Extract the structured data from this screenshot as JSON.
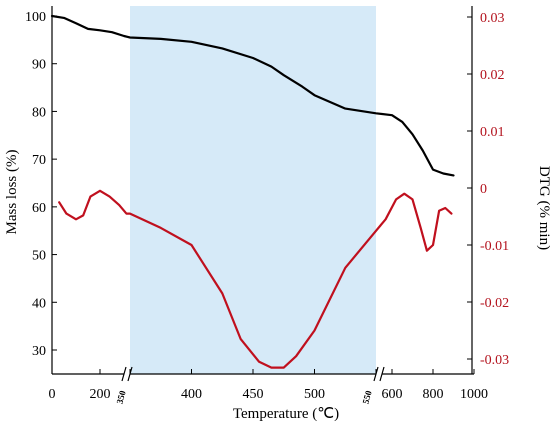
{
  "chart_data": {
    "type": "line",
    "xlabel": "Temperature (℃)",
    "ylabel_left": "Mass loss (%)",
    "ylabel_right": "DTG (% min)",
    "x_ticks": [
      "0",
      "200",
      "350",
      "400",
      "450",
      "500",
      "550",
      "600",
      "800",
      "1000"
    ],
    "y_left_ticks": [
      "100",
      "90",
      "80",
      "70",
      "60",
      "50",
      "40",
      "30"
    ],
    "y_right_ticks": [
      "0.03",
      "0.02",
      "0.01",
      "0",
      "-0.01",
      "-0.02",
      "-0.03"
    ],
    "ylim_left": [
      25,
      101
    ],
    "ylim_right": [
      -0.033,
      0.032
    ],
    "axis_breaks": [
      350,
      550
    ],
    "highlight_range": [
      350,
      550
    ],
    "colors": {
      "mass": "#000000",
      "dtg": "#c0101e",
      "highlight": "#d6eaf8",
      "right_axis_labels": "#b3121d"
    },
    "series": [
      {
        "axis": "left",
        "x": [
          0,
          50,
          100,
          150,
          200,
          250,
          300,
          350,
          375,
          400,
          425,
          450,
          465,
          475,
          490,
          500,
          525,
          550,
          600,
          650,
          700,
          750,
          800,
          850,
          900
        ],
        "values": [
          100,
          99.6,
          98.5,
          97.3,
          97.0,
          96.6,
          95.8,
          95.5,
          95.2,
          94.6,
          93.2,
          91.2,
          89.4,
          87.6,
          85.2,
          83.4,
          80.6,
          79.6,
          79.2,
          77.8,
          75.2,
          71.8,
          67.8,
          67.0,
          66.6
        ],
        "color": "#000000"
      },
      {
        "axis": "right",
        "x": [
          30,
          60,
          100,
          130,
          160,
          200,
          240,
          280,
          320,
          350,
          375,
          400,
          425,
          440,
          455,
          465,
          475,
          485,
          500,
          525,
          550,
          580,
          620,
          660,
          700,
          740,
          770,
          800,
          830,
          860,
          890
        ],
        "values": [
          -0.0025,
          -0.0045,
          -0.0055,
          -0.0048,
          -0.0015,
          -0.0005,
          -0.0015,
          -0.003,
          -0.0045,
          -0.0045,
          -0.007,
          -0.01,
          -0.0185,
          -0.0265,
          -0.0305,
          -0.0315,
          -0.0315,
          -0.0295,
          -0.025,
          -0.014,
          -0.0075,
          -0.0055,
          -0.002,
          -0.001,
          -0.002,
          -0.007,
          -0.011,
          -0.01,
          -0.004,
          -0.0035,
          -0.0045
        ],
        "color": "#c0101e"
      }
    ]
  }
}
